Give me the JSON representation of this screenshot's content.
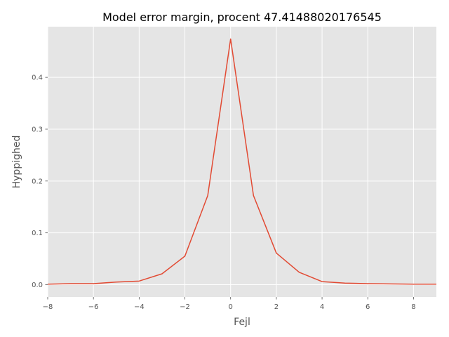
{
  "chart_data": {
    "type": "line",
    "title": "Model error margin, procent 47.41488020176545",
    "xlabel": "Fejl",
    "ylabel": "Hyppighed",
    "xlim": [
      -8,
      9
    ],
    "ylim": [
      -0.0237,
      0.4977
    ],
    "x_ticks": [
      -8,
      -6,
      -4,
      -2,
      0,
      2,
      4,
      6,
      8
    ],
    "x_tick_labels": [
      "−8",
      "−6",
      "−4",
      "−2",
      "0",
      "2",
      "4",
      "6",
      "8"
    ],
    "y_ticks": [
      0.0,
      0.1,
      0.2,
      0.3,
      0.4
    ],
    "y_tick_labels": [
      "0.0",
      "0.1",
      "0.2",
      "0.3",
      "0.4"
    ],
    "grid": true,
    "series": [
      {
        "color": "#e24a33",
        "x": [
          -8,
          -7,
          -6,
          -5,
          -4,
          -3,
          -2,
          -1,
          0,
          1,
          2,
          3,
          4,
          5,
          6,
          7,
          8,
          9
        ],
        "y": [
          0.001,
          0.002,
          0.002,
          0.005,
          0.007,
          0.021,
          0.055,
          0.172,
          0.474,
          0.172,
          0.061,
          0.024,
          0.006,
          0.003,
          0.002,
          0.0015,
          0.001,
          0.001
        ]
      }
    ]
  }
}
